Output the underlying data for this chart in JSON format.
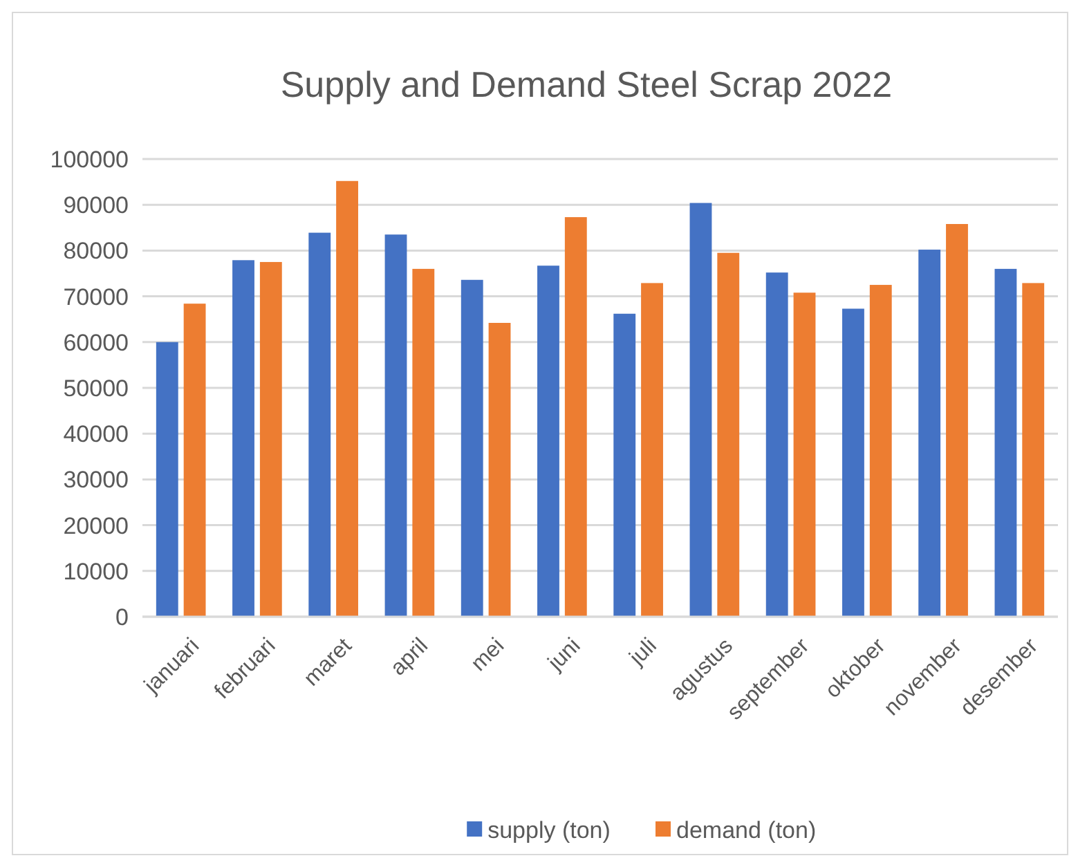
{
  "chart_data": {
    "type": "bar",
    "title": "Supply and Demand Steel Scrap 2022",
    "categories": [
      "januari",
      "februari",
      "maret",
      "april",
      "mei",
      "juni",
      "juli",
      "agustus",
      "september",
      "oktober",
      "november",
      "desember"
    ],
    "series": [
      {
        "name": "supply (ton)",
        "color": "#4472c4",
        "values": [
          60000,
          77900,
          83900,
          83500,
          73600,
          76700,
          66200,
          90400,
          75200,
          67300,
          80200,
          76000
        ]
      },
      {
        "name": "demand (ton)",
        "color": "#ed7d31",
        "values": [
          68400,
          77500,
          95200,
          76000,
          64200,
          87300,
          72900,
          79500,
          70800,
          72500,
          85800,
          72900
        ]
      }
    ],
    "ylim": [
      0,
      100000
    ],
    "yticks": [
      0,
      10000,
      20000,
      30000,
      40000,
      50000,
      60000,
      70000,
      80000,
      90000,
      100000
    ],
    "grid": "y",
    "legend": "bottom"
  }
}
